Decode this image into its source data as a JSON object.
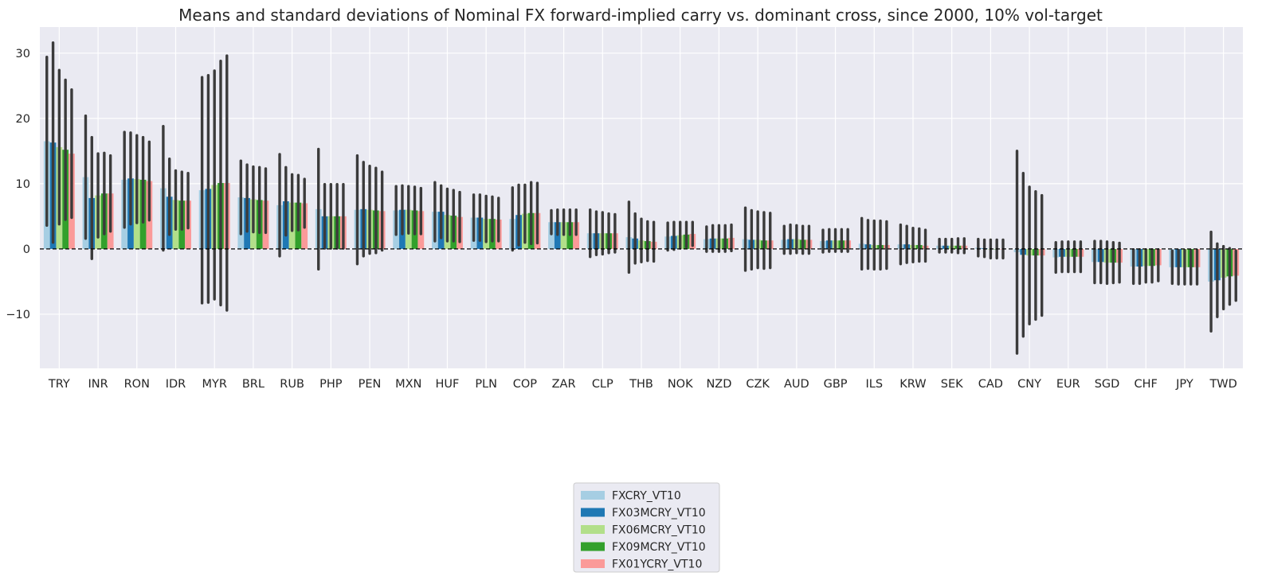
{
  "chart_data": {
    "type": "bar",
    "title": "Means and standard deviations of Nominal FX forward-implied carry vs. dominant cross, since 2000, 10% vol-target",
    "xlabel": "",
    "ylabel": "",
    "ylim": [
      -18.3,
      34
    ],
    "yticks": [
      -10,
      0,
      10,
      20,
      30
    ],
    "ytick_labels": [
      "−10",
      "0",
      "10",
      "20",
      "30"
    ],
    "grid": true,
    "reference_line": 0,
    "legend_position": "bottom-center",
    "categories": [
      "TRY",
      "INR",
      "RON",
      "IDR",
      "MYR",
      "BRL",
      "RUB",
      "PHP",
      "PEN",
      "MXN",
      "HUF",
      "PLN",
      "COP",
      "ZAR",
      "CLP",
      "THB",
      "NOK",
      "NZD",
      "CZK",
      "AUD",
      "GBP",
      "ILS",
      "KRW",
      "SEK",
      "CAD",
      "CNY",
      "EUR",
      "SGD",
      "CHF",
      "JPY",
      "TWD"
    ],
    "series": [
      {
        "name": "FXCRY_VT10",
        "color": "#a6cee3",
        "values": [
          16.5,
          11.0,
          10.6,
          9.3,
          9.0,
          7.9,
          6.7,
          6.1,
          6.0,
          5.9,
          5.7,
          4.8,
          4.6,
          4.1,
          2.4,
          1.8,
          1.9,
          1.5,
          1.5,
          1.4,
          1.2,
          0.8,
          0.7,
          0.5,
          0.2,
          -0.5,
          -1.3,
          -2.0,
          -2.7,
          -2.8,
          -5.0
        ],
        "sd": [
          12.9,
          9.4,
          7.3,
          9.5,
          17.3,
          5.6,
          7.8,
          9.2,
          8.3,
          3.7,
          4.5,
          3.5,
          4.8,
          1.8,
          3.6,
          5.4,
          2.1,
          1.9,
          4.8,
          2.1,
          1.7,
          3.9,
          3.0,
          1.0,
          1.3,
          15.5,
          2.3,
          3.2,
          2.6,
          2.5,
          7.6
        ]
      },
      {
        "name": "FX03MCRY_VT10",
        "color": "#1f78b4",
        "values": [
          16.3,
          7.8,
          10.8,
          8.0,
          9.2,
          7.8,
          7.3,
          5.0,
          6.1,
          6.0,
          5.7,
          4.8,
          5.2,
          4.1,
          2.4,
          1.6,
          2.0,
          1.6,
          1.4,
          1.5,
          1.3,
          0.7,
          0.7,
          0.5,
          0.1,
          -0.9,
          -1.2,
          -2.0,
          -2.7,
          -2.8,
          -4.8
        ],
        "sd": [
          15.3,
          9.3,
          7.0,
          5.8,
          17.4,
          5.1,
          5.2,
          4.9,
          7.2,
          3.7,
          4.0,
          3.5,
          4.6,
          1.9,
          3.3,
          3.8,
          2.1,
          2.0,
          4.5,
          2.2,
          1.7,
          3.7,
          2.8,
          1.0,
          1.3,
          12.5,
          2.3,
          3.2,
          2.6,
          2.6,
          5.6
        ]
      },
      {
        "name": "FX06MCRY_VT10",
        "color": "#b2df8a",
        "values": [
          15.6,
          8.2,
          10.7,
          7.5,
          9.8,
          7.6,
          7.1,
          5.0,
          6.0,
          6.0,
          5.2,
          4.6,
          5.4,
          4.1,
          2.4,
          1.3,
          2.1,
          1.6,
          1.4,
          1.5,
          1.3,
          0.6,
          0.6,
          0.5,
          0.0,
          -1.0,
          -1.2,
          -2.1,
          -2.6,
          -2.8,
          -4.4
        ],
        "sd": [
          11.8,
          6.4,
          6.7,
          4.5,
          17.5,
          5.0,
          4.3,
          4.9,
          6.7,
          3.6,
          4.0,
          3.5,
          4.4,
          1.9,
          3.2,
          3.3,
          2.0,
          2.0,
          4.3,
          2.1,
          1.7,
          3.7,
          2.6,
          1.0,
          1.4,
          10.5,
          2.3,
          3.2,
          2.5,
          2.6,
          4.8
        ]
      },
      {
        "name": "FX09MCRY_VT10",
        "color": "#33a02c",
        "values": [
          15.2,
          8.5,
          10.6,
          7.4,
          10.1,
          7.5,
          7.1,
          5.0,
          5.9,
          5.9,
          5.1,
          4.6,
          5.5,
          4.1,
          2.4,
          1.2,
          2.2,
          1.6,
          1.3,
          1.4,
          1.3,
          0.6,
          0.6,
          0.5,
          0.0,
          -1.0,
          -1.2,
          -2.1,
          -2.6,
          -2.8,
          -4.2
        ],
        "sd": [
          10.7,
          6.2,
          6.5,
          4.4,
          18.7,
          5.0,
          4.2,
          4.9,
          6.5,
          3.6,
          3.9,
          3.4,
          4.7,
          1.9,
          3.0,
          3.0,
          1.9,
          2.0,
          4.3,
          2.1,
          1.7,
          3.7,
          2.5,
          1.1,
          1.4,
          9.8,
          2.3,
          3.1,
          2.5,
          2.6,
          4.3
        ]
      },
      {
        "name": "FX01YCRY_VT10",
        "color": "#fb9a99",
        "values": [
          14.6,
          8.5,
          10.4,
          7.4,
          10.1,
          7.4,
          7.0,
          5.0,
          5.8,
          5.8,
          4.9,
          4.5,
          5.5,
          4.1,
          2.4,
          1.1,
          2.3,
          1.7,
          1.3,
          1.4,
          1.3,
          0.6,
          0.5,
          0.5,
          0.0,
          -1.0,
          -1.2,
          -2.1,
          -2.5,
          -2.8,
          -4.1
        ],
        "sd": [
          9.8,
          5.8,
          6.0,
          4.2,
          19.5,
          4.9,
          3.7,
          4.9,
          6.0,
          3.5,
          3.8,
          3.3,
          4.6,
          1.9,
          2.9,
          3.0,
          1.8,
          2.0,
          4.2,
          2.1,
          1.7,
          3.6,
          2.4,
          1.1,
          1.4,
          9.2,
          2.3,
          3.0,
          2.4,
          2.6,
          3.8
        ]
      }
    ]
  }
}
